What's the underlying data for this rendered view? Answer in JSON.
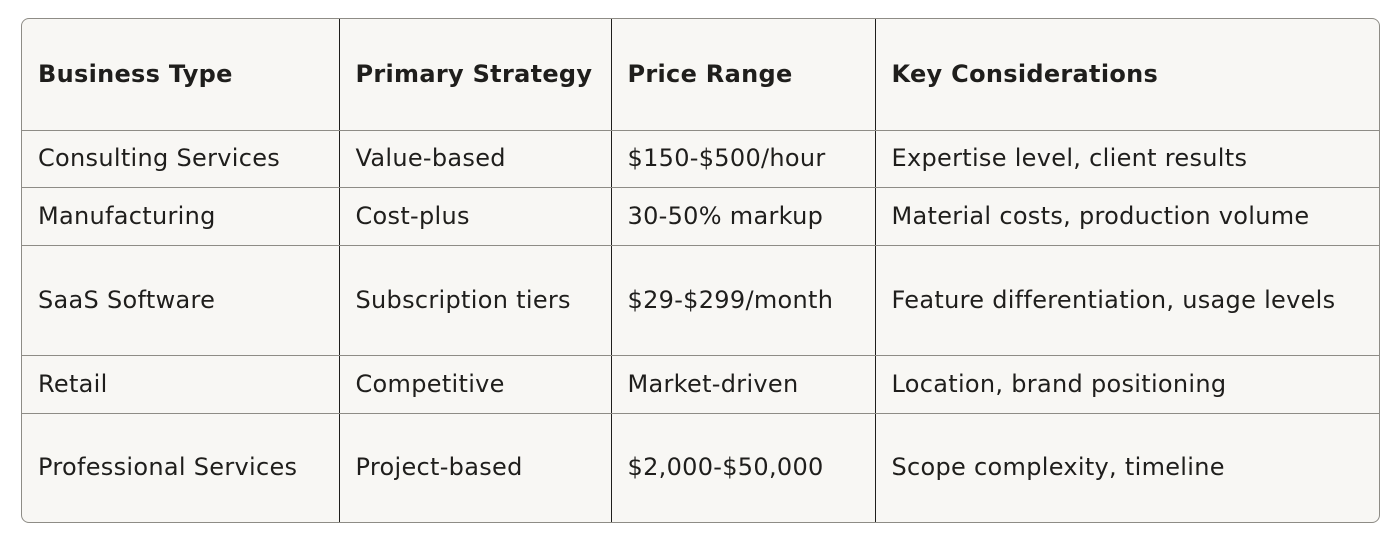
{
  "table": {
    "headers": [
      "Business Type",
      "Primary Strategy",
      "Price Range",
      "Key Considerations"
    ],
    "rows": [
      [
        "Consulting Services",
        "Value-based",
        "$150-$500/hour",
        "Expertise level, client results"
      ],
      [
        "Manufacturing",
        "Cost-plus",
        "30-50% markup",
        "Material costs, production volume"
      ],
      [
        "SaaS Software",
        "Subscription tiers",
        "$29-$299/month",
        "Feature differentiation, usage levels"
      ],
      [
        "Retail",
        "Competitive",
        "Market-driven",
        "Location, brand positioning"
      ],
      [
        "Professional Services",
        "Project-based",
        "$2,000-$50,000",
        "Scope complexity, timeline"
      ]
    ]
  }
}
